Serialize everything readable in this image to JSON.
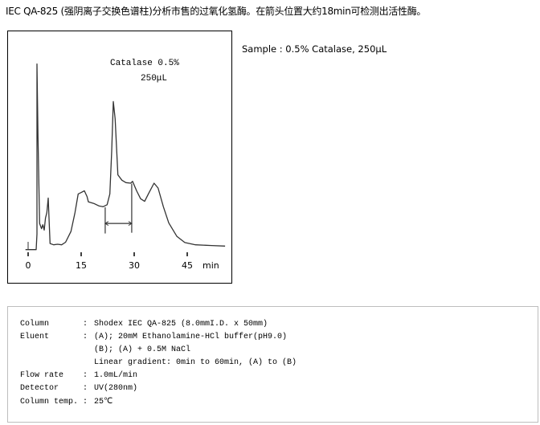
{
  "title": "IEC QA-825 (强阴离子交换色谱柱)分析市售的过氧化氢酶。在箭头位置大约18min可检测出活性酶。",
  "sample": "Sample : 0.5% Catalase, 250μL",
  "chart_data": {
    "type": "line",
    "xlabel": "min",
    "x_ticks": [
      "0",
      "15",
      "30",
      "45"
    ],
    "x_tick_values": [
      0,
      15,
      30,
      45
    ],
    "xlim": [
      -1,
      56
    ],
    "ylim": [
      0,
      100
    ],
    "y_axis_shown": false,
    "grid": false,
    "annotations": [
      "Catalase 0.5%",
      "250μL"
    ],
    "series": [
      {
        "color": "#333333",
        "points": [
          [
            -0.76,
            0
          ],
          [
            2.27,
            0
          ],
          [
            2.5,
            8.4
          ],
          [
            2.5,
            100
          ],
          [
            2.8,
            60.3
          ],
          [
            3.26,
            14.1
          ],
          [
            3.79,
            11.3
          ],
          [
            4.17,
            13.4
          ],
          [
            4.55,
            10.5
          ],
          [
            4.92,
            17.0
          ],
          [
            5.3,
            19.9
          ],
          [
            5.68,
            27.8
          ],
          [
            5.91,
            17.0
          ],
          [
            6.21,
            3.3
          ],
          [
            7.2,
            2.6
          ],
          [
            8.33,
            2.9
          ],
          [
            9.47,
            2.6
          ],
          [
            10.6,
            4.0
          ],
          [
            12.12,
            9.8
          ],
          [
            13.26,
            19.9
          ],
          [
            14.17,
            30.0
          ],
          [
            14.92,
            30.7
          ],
          [
            15.9,
            31.7
          ],
          [
            16.67,
            28.6
          ],
          [
            17.05,
            25.7
          ],
          [
            18.56,
            24.9
          ],
          [
            20.08,
            23.5
          ],
          [
            21.21,
            23.1
          ],
          [
            22.35,
            24.2
          ],
          [
            23.11,
            30.0
          ],
          [
            23.64,
            53.1
          ],
          [
            24.09,
            79.8
          ],
          [
            24.62,
            70.4
          ],
          [
            25.38,
            40.3
          ],
          [
            26.52,
            37.4
          ],
          [
            27.65,
            36.1
          ],
          [
            29.02,
            35.8
          ],
          [
            29.55,
            36.8
          ],
          [
            30.68,
            31.7
          ],
          [
            31.82,
            27.4
          ],
          [
            32.95,
            26.0
          ],
          [
            34.09,
            30.3
          ],
          [
            35.61,
            35.8
          ],
          [
            36.74,
            33.2
          ],
          [
            38.26,
            23.1
          ],
          [
            39.77,
            14.4
          ],
          [
            42.05,
            7.2
          ],
          [
            44.32,
            3.8
          ],
          [
            47.35,
            2.6
          ],
          [
            51.9,
            2.2
          ],
          [
            55.7,
            1.9
          ]
        ]
      }
    ],
    "active_fraction_arrow": {
      "start_min": 21.8,
      "end_min": 29.3,
      "level": 14.1,
      "left_marker": [
        8.7,
        22.8
      ],
      "right_marker": [
        9.1,
        35.5
      ]
    }
  },
  "conditions": [
    {
      "label": "Column",
      "value": "Shodex IEC QA-825 (8.0mmI.D. x 50mm)"
    },
    {
      "label": "Eluent",
      "value": "(A); 20mM Ethanolamine-HCl buffer(pH9.0)"
    },
    {
      "label": "",
      "value": "(B); (A) + 0.5M NaCl"
    },
    {
      "label": "",
      "value": "Linear gradient: 0min to 60min, (A) to (B)"
    },
    {
      "label": "Flow rate",
      "value": "1.0mL/min"
    },
    {
      "label": "Detector",
      "value": "UV(280nm)"
    },
    {
      "label": "Column temp.",
      "value": "25℃"
    }
  ]
}
